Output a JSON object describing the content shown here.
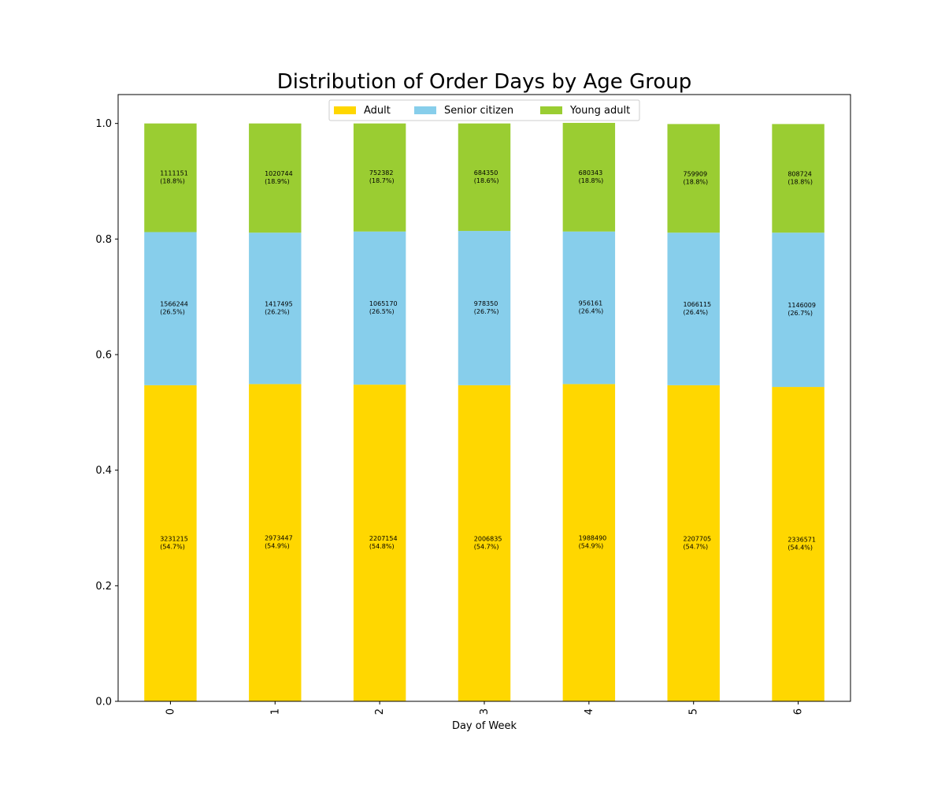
{
  "chart_data": {
    "type": "bar",
    "stacked": true,
    "title": "Distribution of Order Days by Age Group",
    "xlabel": "Day of Week",
    "ylabel": "",
    "categories": [
      "0",
      "1",
      "2",
      "3",
      "4",
      "5",
      "6"
    ],
    "ylim": [
      0,
      1.05
    ],
    "yticks": [
      "0.0",
      "0.2",
      "0.4",
      "0.6",
      "0.8",
      "1.0"
    ],
    "grid": false,
    "legend_position": "top-center",
    "series": [
      {
        "name": "Adult",
        "color": "#FFD700",
        "values": [
          0.547,
          0.549,
          0.548,
          0.547,
          0.549,
          0.547,
          0.544
        ],
        "counts": [
          "3231215",
          "2973447",
          "2207154",
          "2006835",
          "1988490",
          "2207705",
          "2336571"
        ],
        "percents": [
          "(54.7%)",
          "(54.9%)",
          "(54.8%)",
          "(54.7%)",
          "(54.9%)",
          "(54.7%)",
          "(54.4%)"
        ]
      },
      {
        "name": "Senior citizen",
        "color": "#87CEEB",
        "values": [
          0.265,
          0.262,
          0.265,
          0.267,
          0.264,
          0.264,
          0.267
        ],
        "counts": [
          "1566244",
          "1417495",
          "1065170",
          "978350",
          "956161",
          "1066115",
          "1146009"
        ],
        "percents": [
          "(26.5%)",
          "(26.2%)",
          "(26.5%)",
          "(26.7%)",
          "(26.4%)",
          "(26.4%)",
          "(26.7%)"
        ]
      },
      {
        "name": "Young adult",
        "color": "#9ACD32",
        "values": [
          0.188,
          0.189,
          0.187,
          0.186,
          0.188,
          0.188,
          0.188
        ],
        "counts": [
          "1111151",
          "1020744",
          "752382",
          "684350",
          "680343",
          "759909",
          "808724"
        ],
        "percents": [
          "(18.8%)",
          "(18.9%)",
          "(18.7%)",
          "(18.6%)",
          "(18.8%)",
          "(18.8%)",
          "(18.8%)"
        ]
      }
    ]
  }
}
